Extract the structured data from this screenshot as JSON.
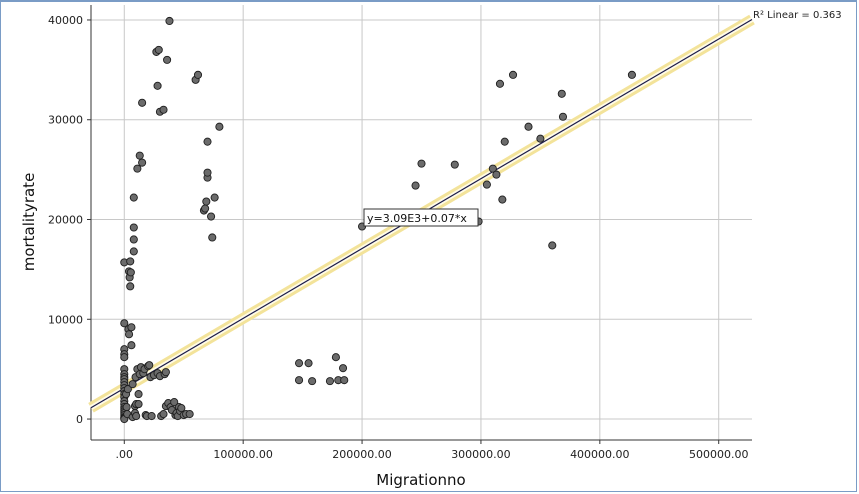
{
  "chart_data": {
    "type": "scatter",
    "xlabel": "Migrationno",
    "ylabel": "mortalityrate",
    "xlim": [
      -28000,
      528000
    ],
    "ylim": [
      -2100,
      41500
    ],
    "x_ticks": [
      0,
      100000,
      200000,
      300000,
      400000,
      500000
    ],
    "x_tick_labels": [
      ".00",
      "100000.00",
      "200000.00",
      "300000.00",
      "400000.00",
      "500000.00"
    ],
    "y_ticks": [
      0,
      10000,
      20000,
      30000,
      40000
    ],
    "y_tick_labels": [
      "0",
      "10000",
      "20000",
      "30000",
      "40000"
    ],
    "grid": true,
    "fit_line": {
      "intercept": 3090,
      "slope": 0.07
    },
    "fit_equation": "y=3.09E3+0.07*x",
    "r2_label": "R² Linear = 0.363",
    "point_color": "#6b6b6b",
    "fit_line_color": "#1a1a4a",
    "fit_band_color": "#f3e39a",
    "points": [
      [
        0,
        15700
      ],
      [
        0,
        9600
      ],
      [
        0,
        7000
      ],
      [
        0,
        6500
      ],
      [
        0,
        6200
      ],
      [
        0,
        5000
      ],
      [
        0,
        4500
      ],
      [
        0,
        4200
      ],
      [
        0,
        4000
      ],
      [
        0,
        3700
      ],
      [
        0,
        3400
      ],
      [
        0,
        3100
      ],
      [
        0,
        2800
      ],
      [
        0,
        2500
      ],
      [
        0,
        2200
      ],
      [
        0,
        1800
      ],
      [
        0,
        1500
      ],
      [
        0,
        1200
      ],
      [
        0,
        1000
      ],
      [
        0,
        800
      ],
      [
        0,
        600
      ],
      [
        0,
        400
      ],
      [
        0,
        200
      ],
      [
        0,
        100
      ],
      [
        0,
        0
      ],
      [
        1500,
        2500
      ],
      [
        2000,
        1200
      ],
      [
        2500,
        500
      ],
      [
        3000,
        3000
      ],
      [
        3500,
        9000
      ],
      [
        4000,
        8500
      ],
      [
        4000,
        14800
      ],
      [
        4500,
        14200
      ],
      [
        5000,
        15800
      ],
      [
        5000,
        13300
      ],
      [
        5500,
        14700
      ],
      [
        6000,
        9200
      ],
      [
        6000,
        7400
      ],
      [
        7000,
        200
      ],
      [
        7000,
        3500
      ],
      [
        8000,
        16800
      ],
      [
        8000,
        19200
      ],
      [
        8000,
        22200
      ],
      [
        8000,
        18000
      ],
      [
        9000,
        1300
      ],
      [
        9000,
        600
      ],
      [
        9500,
        4200
      ],
      [
        10000,
        1500
      ],
      [
        10000,
        300
      ],
      [
        11000,
        5000
      ],
      [
        11000,
        25100
      ],
      [
        12000,
        1500
      ],
      [
        12000,
        2500
      ],
      [
        13000,
        26400
      ],
      [
        13000,
        4500
      ],
      [
        14000,
        5200
      ],
      [
        15000,
        25700
      ],
      [
        15000,
        31700
      ],
      [
        16000,
        4600
      ],
      [
        17000,
        5000
      ],
      [
        18000,
        400
      ],
      [
        19000,
        300
      ],
      [
        20000,
        5300
      ],
      [
        21000,
        5400
      ],
      [
        22000,
        4200
      ],
      [
        23000,
        300
      ],
      [
        25000,
        4400
      ],
      [
        27000,
        36800
      ],
      [
        28000,
        4600
      ],
      [
        28000,
        33400
      ],
      [
        29000,
        37000
      ],
      [
        30000,
        30800
      ],
      [
        30000,
        4300
      ],
      [
        31000,
        300
      ],
      [
        33000,
        31000
      ],
      [
        33000,
        500
      ],
      [
        34000,
        4500
      ],
      [
        35000,
        4700
      ],
      [
        35000,
        1300
      ],
      [
        36000,
        36000
      ],
      [
        37000,
        1600
      ],
      [
        38000,
        39900
      ],
      [
        39000,
        1200
      ],
      [
        40000,
        900
      ],
      [
        42000,
        1700
      ],
      [
        43000,
        400
      ],
      [
        44000,
        600
      ],
      [
        45000,
        300
      ],
      [
        46000,
        1200
      ],
      [
        47000,
        800
      ],
      [
        48000,
        1100
      ],
      [
        50000,
        400
      ],
      [
        52000,
        500
      ],
      [
        55000,
        500
      ],
      [
        60000,
        34000
      ],
      [
        62000,
        34500
      ],
      [
        67000,
        20900
      ],
      [
        68000,
        21100
      ],
      [
        69000,
        21800
      ],
      [
        70000,
        24200
      ],
      [
        70000,
        24700
      ],
      [
        70000,
        27800
      ],
      [
        73000,
        20300
      ],
      [
        74000,
        18200
      ],
      [
        76000,
        22200
      ],
      [
        80000,
        29300
      ],
      [
        147000,
        5600
      ],
      [
        147000,
        3900
      ],
      [
        155000,
        5600
      ],
      [
        158000,
        3800
      ],
      [
        173000,
        3800
      ],
      [
        178000,
        6200
      ],
      [
        180000,
        3900
      ],
      [
        184000,
        5100
      ],
      [
        185000,
        3900
      ],
      [
        200000,
        19300
      ],
      [
        245000,
        23400
      ],
      [
        250000,
        25600
      ],
      [
        278000,
        25500
      ],
      [
        298000,
        19800
      ],
      [
        305000,
        23500
      ],
      [
        310000,
        25100
      ],
      [
        313000,
        24500
      ],
      [
        316000,
        33600
      ],
      [
        318000,
        22000
      ],
      [
        320000,
        27800
      ],
      [
        327000,
        34500
      ],
      [
        340000,
        29300
      ],
      [
        350000,
        28100
      ],
      [
        360000,
        17400
      ],
      [
        368000,
        32600
      ],
      [
        369000,
        30300
      ],
      [
        427000,
        34500
      ]
    ]
  }
}
